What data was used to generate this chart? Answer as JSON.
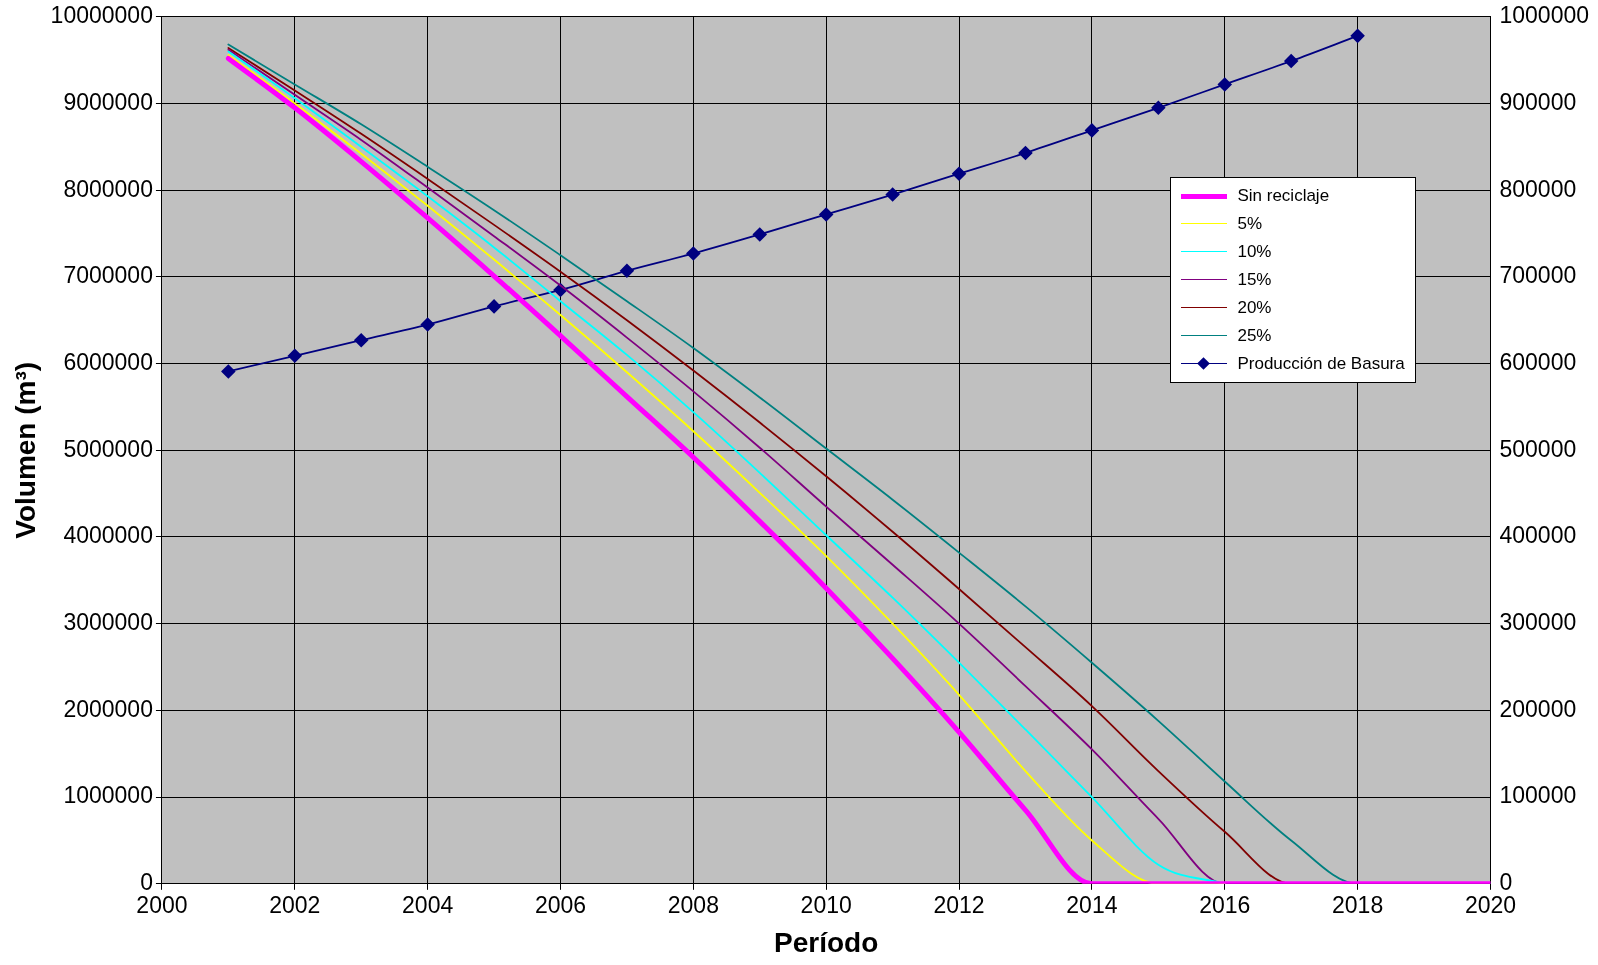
{
  "chart_data": {
    "type": "line",
    "xlabel": "Período",
    "ylabel": "Volumen (m³)",
    "xlim": [
      2000,
      2020
    ],
    "xticks": [
      2000,
      2002,
      2004,
      2006,
      2008,
      2010,
      2012,
      2014,
      2016,
      2018,
      2020
    ],
    "ylim": [
      0,
      10000000
    ],
    "yticks": [
      0,
      1000000,
      2000000,
      3000000,
      4000000,
      5000000,
      6000000,
      7000000,
      8000000,
      9000000,
      10000000
    ],
    "y2lim": [
      0,
      1000000
    ],
    "y2ticks": [
      0,
      100000,
      200000,
      300000,
      400000,
      500000,
      600000,
      700000,
      800000,
      900000,
      1000000
    ],
    "grid": true,
    "legend": "right",
    "series": [
      {
        "name": "Sin reciclaje",
        "color": "#ff00ff",
        "marker": "none",
        "x": [
          2001,
          2002,
          2003,
          2004,
          2005,
          2006,
          2007,
          2008,
          2009,
          2010,
          2011,
          2012,
          2013,
          2014,
          2015,
          2016,
          2017,
          2018,
          2019,
          2020
        ],
        "values": [
          9520000,
          8950000,
          8330000,
          7680000,
          7010000,
          6320000,
          5620000,
          4920000,
          4180000,
          3410000,
          2600000,
          1750000,
          850000,
          0,
          0,
          0,
          0,
          0,
          0,
          0
        ]
      },
      {
        "name": "5%",
        "color": "#ffff00",
        "marker": "none",
        "x": [
          2001,
          2002,
          2003,
          2004,
          2005,
          2006,
          2007,
          2008,
          2009,
          2010,
          2011,
          2012,
          2013,
          2014,
          2015,
          2016
        ],
        "values": [
          9560000,
          9000000,
          8420000,
          7820000,
          7200000,
          6560000,
          5900000,
          5220000,
          4510000,
          3780000,
          3000000,
          2180000,
          1300000,
          500000,
          0,
          0
        ]
      },
      {
        "name": "10%",
        "color": "#00ffff",
        "marker": "none",
        "x": [
          2001,
          2002,
          2003,
          2004,
          2005,
          2006,
          2007,
          2008,
          2009,
          2010,
          2011,
          2012,
          2013,
          2014,
          2015,
          2016
        ],
        "values": [
          9600000,
          9060000,
          8500000,
          7930000,
          7340000,
          6720000,
          6100000,
          5440000,
          4740000,
          4020000,
          3300000,
          2550000,
          1780000,
          1000000,
          220000,
          0
        ]
      },
      {
        "name": "15%",
        "color": "#800080",
        "marker": "none",
        "x": [
          2001,
          2002,
          2003,
          2004,
          2005,
          2006,
          2007,
          2008,
          2009,
          2010,
          2011,
          2012,
          2013,
          2014,
          2015,
          2016,
          2017,
          2018,
          2019,
          2020
        ],
        "values": [
          9620000,
          9100000,
          8580000,
          8030000,
          7470000,
          6900000,
          6300000,
          5680000,
          5030000,
          4350000,
          3680000,
          3000000,
          2280000,
          1550000,
          750000,
          0,
          0,
          0,
          0,
          0
        ]
      },
      {
        "name": "20%",
        "color": "#800000",
        "marker": "none",
        "x": [
          2001,
          2002,
          2003,
          2004,
          2005,
          2006,
          2007,
          2008,
          2009,
          2010,
          2011,
          2012,
          2013,
          2014,
          2015,
          2016,
          2017,
          2018
        ],
        "values": [
          9640000,
          9150000,
          8650000,
          8130000,
          7600000,
          7060000,
          6500000,
          5920000,
          5320000,
          4700000,
          4060000,
          3400000,
          2730000,
          2050000,
          1300000,
          600000,
          0,
          0
        ]
      },
      {
        "name": "25%",
        "color": "#008080",
        "marker": "none",
        "x": [
          2001,
          2002,
          2003,
          2004,
          2005,
          2006,
          2007,
          2008,
          2009,
          2010,
          2011,
          2012,
          2013,
          2014,
          2015,
          2016,
          2017,
          2018,
          2019,
          2020
        ],
        "values": [
          9680000,
          9220000,
          8760000,
          8270000,
          7770000,
          7250000,
          6720000,
          6180000,
          5610000,
          5020000,
          4430000,
          3820000,
          3200000,
          2550000,
          1880000,
          1180000,
          500000,
          0,
          0,
          0
        ]
      },
      {
        "name": "Producción de Basura",
        "color": "#000080",
        "marker": "diamond",
        "axis": "y2",
        "x": [
          2001,
          2002,
          2003,
          2004,
          2005,
          2006,
          2007,
          2008,
          2009,
          2010,
          2011,
          2012,
          2013,
          2014,
          2015,
          2016,
          2017,
          2018
        ],
        "values": [
          591000,
          609000,
          627000,
          645000,
          666000,
          685000,
          707000,
          727000,
          749000,
          772000,
          795000,
          819000,
          843000,
          869000,
          895000,
          922000,
          949000,
          978000
        ]
      }
    ]
  }
}
